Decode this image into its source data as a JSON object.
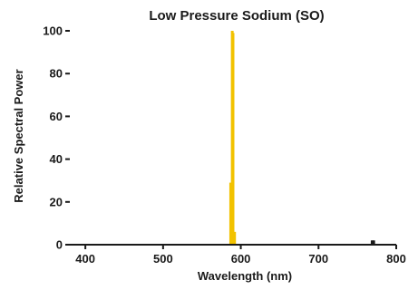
{
  "chart_data": {
    "type": "bar",
    "title": "Low Pressure Sodium (SO)",
    "xlabel": "Wavelength (nm)",
    "ylabel": "Relative Spectral Power",
    "xlim": [
      380,
      800
    ],
    "ylim": [
      0,
      100
    ],
    "xticks": [
      "400",
      "500",
      "600",
      "700",
      "800"
    ],
    "yticks": [
      "0",
      "20",
      "40",
      "60",
      "80",
      "100"
    ],
    "grid": false,
    "series": [
      {
        "color": "#f2c200",
        "points": [
          {
            "x": 587,
            "y": 29
          },
          {
            "x": 589,
            "y": 100
          },
          {
            "x": 590,
            "y": 99
          },
          {
            "x": 592,
            "y": 6
          }
        ]
      },
      {
        "color": "#1a1a1a",
        "points": [
          {
            "x": 769,
            "y": 2
          },
          {
            "x": 771,
            "y": 2
          }
        ]
      }
    ]
  }
}
